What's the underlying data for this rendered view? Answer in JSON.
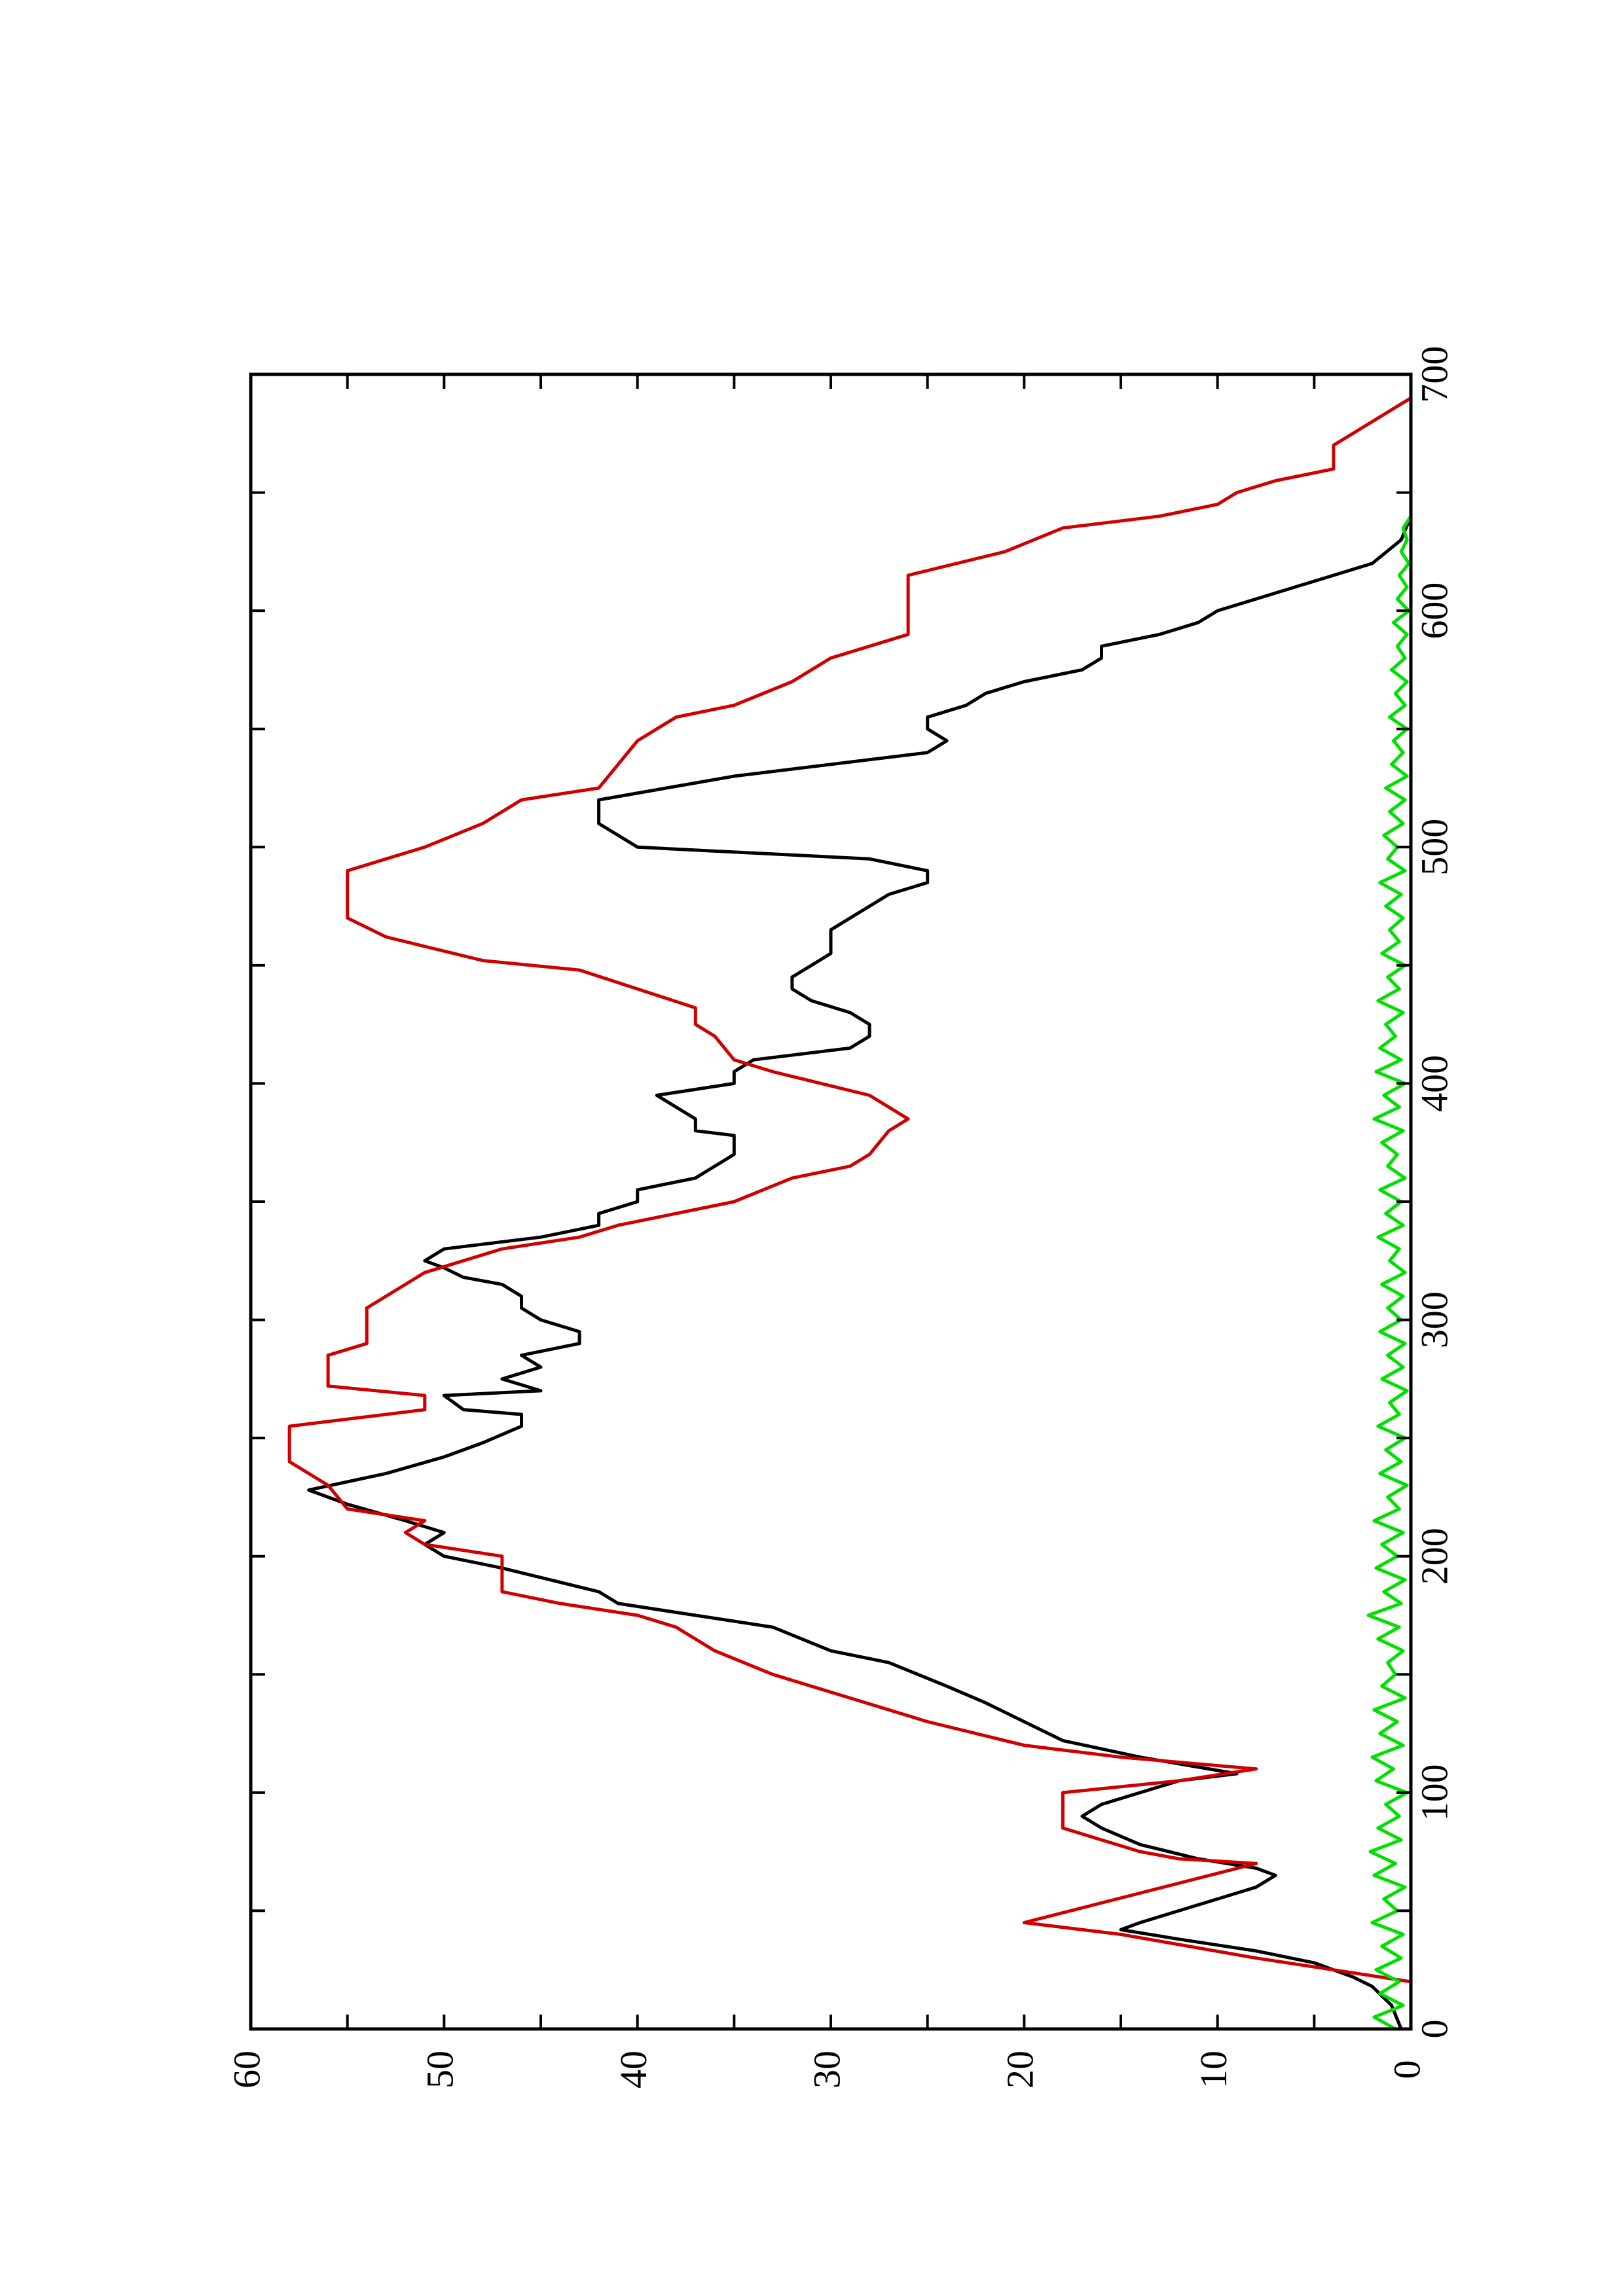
{
  "chart_data": {
    "type": "line",
    "orientation": "rotated-90-ccw",
    "title": "",
    "xlabel": "",
    "ylabel": "",
    "xlim": [
      0,
      700
    ],
    "ylim": [
      0,
      60
    ],
    "x_ticks": [
      0,
      100,
      200,
      300,
      400,
      500,
      600,
      700
    ],
    "x_tick_labels": [
      "0",
      "100",
      "200",
      "300",
      "400",
      "500",
      "600",
      "700"
    ],
    "y_ticks": [
      0,
      10,
      20,
      30,
      40,
      50,
      60
    ],
    "y_tick_labels": [
      "0",
      "10",
      "20",
      "30",
      "40",
      "50",
      "60"
    ],
    "grid": false,
    "legend": "none",
    "series": [
      {
        "color": "#000000",
        "points": [
          [
            0,
            0.5
          ],
          [
            10,
            1
          ],
          [
            18,
            2
          ],
          [
            22,
            3
          ],
          [
            28,
            5
          ],
          [
            33,
            8
          ],
          [
            38,
            12
          ],
          [
            42,
            15
          ],
          [
            45,
            14
          ],
          [
            50,
            12
          ],
          [
            55,
            10
          ],
          [
            60,
            8
          ],
          [
            65,
            7
          ],
          [
            68,
            8
          ],
          [
            72,
            11
          ],
          [
            78,
            14
          ],
          [
            85,
            16
          ],
          [
            90,
            17
          ],
          [
            95,
            16
          ],
          [
            100,
            14
          ],
          [
            105,
            12
          ],
          [
            108,
            9
          ],
          [
            115,
            14
          ],
          [
            122,
            18
          ],
          [
            130,
            20
          ],
          [
            138,
            22
          ],
          [
            145,
            24
          ],
          [
            155,
            27
          ],
          [
            160,
            30
          ],
          [
            170,
            33
          ],
          [
            175,
            37
          ],
          [
            180,
            41
          ],
          [
            185,
            42
          ],
          [
            195,
            47
          ],
          [
            200,
            50
          ],
          [
            205,
            51
          ],
          [
            210,
            50
          ],
          [
            215,
            52
          ],
          [
            222,
            55
          ],
          [
            228,
            57
          ],
          [
            235,
            53
          ],
          [
            242,
            50
          ],
          [
            248,
            48
          ],
          [
            255,
            46
          ],
          [
            260,
            46
          ],
          [
            262,
            49
          ],
          [
            268,
            50
          ],
          [
            270,
            45
          ],
          [
            275,
            47
          ],
          [
            280,
            45
          ],
          [
            285,
            46
          ],
          [
            290,
            43
          ],
          [
            295,
            43
          ],
          [
            300,
            45
          ],
          [
            305,
            46
          ],
          [
            310,
            46
          ],
          [
            315,
            47
          ],
          [
            318,
            49
          ],
          [
            322,
            50
          ],
          [
            325,
            51
          ],
          [
            330,
            50
          ],
          [
            335,
            45
          ],
          [
            340,
            42
          ],
          [
            345,
            42
          ],
          [
            350,
            40
          ],
          [
            355,
            40
          ],
          [
            360,
            37
          ],
          [
            365,
            36
          ],
          [
            370,
            35
          ],
          [
            378,
            35
          ],
          [
            380,
            37
          ],
          [
            385,
            37
          ],
          [
            390,
            38
          ],
          [
            395,
            39
          ],
          [
            400,
            35
          ],
          [
            405,
            35
          ],
          [
            410,
            34
          ],
          [
            415,
            29
          ],
          [
            420,
            28
          ],
          [
            425,
            28
          ],
          [
            430,
            29
          ],
          [
            435,
            31
          ],
          [
            440,
            32
          ],
          [
            445,
            32
          ],
          [
            450,
            31
          ],
          [
            455,
            30
          ],
          [
            460,
            30
          ],
          [
            465,
            30
          ],
          [
            470,
            29
          ],
          [
            475,
            28
          ],
          [
            480,
            27
          ],
          [
            485,
            25
          ],
          [
            490,
            25
          ],
          [
            495,
            28
          ],
          [
            500,
            40
          ],
          [
            510,
            42
          ],
          [
            520,
            42
          ],
          [
            530,
            35
          ],
          [
            540,
            25
          ],
          [
            545,
            24
          ],
          [
            550,
            25
          ],
          [
            555,
            25
          ],
          [
            560,
            23
          ],
          [
            565,
            22
          ],
          [
            570,
            20
          ],
          [
            575,
            17
          ],
          [
            580,
            16
          ],
          [
            585,
            16
          ],
          [
            590,
            13
          ],
          [
            595,
            11
          ],
          [
            600,
            10
          ],
          [
            605,
            8
          ],
          [
            610,
            6
          ],
          [
            615,
            4
          ],
          [
            620,
            2
          ],
          [
            630,
            0.5
          ],
          [
            640,
            0
          ]
        ]
      },
      {
        "color": "#d00000",
        "points": [
          [
            0,
            0
          ],
          [
            20,
            0
          ],
          [
            25,
            4
          ],
          [
            30,
            8
          ],
          [
            40,
            15
          ],
          [
            45,
            20
          ],
          [
            70,
            8
          ],
          [
            72,
            12
          ],
          [
            75,
            14
          ],
          [
            80,
            16
          ],
          [
            85,
            18
          ],
          [
            100,
            18
          ],
          [
            105,
            12
          ],
          [
            110,
            8
          ],
          [
            115,
            15
          ],
          [
            120,
            20
          ],
          [
            130,
            25
          ],
          [
            140,
            29
          ],
          [
            150,
            33
          ],
          [
            160,
            36
          ],
          [
            170,
            38
          ],
          [
            175,
            40
          ],
          [
            180,
            44
          ],
          [
            185,
            47
          ],
          [
            200,
            47
          ],
          [
            205,
            51
          ],
          [
            210,
            52
          ],
          [
            215,
            51
          ],
          [
            220,
            55
          ],
          [
            230,
            56
          ],
          [
            240,
            58
          ],
          [
            255,
            58
          ],
          [
            262,
            51
          ],
          [
            268,
            51
          ],
          [
            272,
            56
          ],
          [
            285,
            56
          ],
          [
            290,
            54
          ],
          [
            305,
            54
          ],
          [
            320,
            51
          ],
          [
            330,
            47
          ],
          [
            335,
            43
          ],
          [
            340,
            41
          ],
          [
            345,
            38
          ],
          [
            350,
            35
          ],
          [
            360,
            32
          ],
          [
            365,
            29
          ],
          [
            370,
            28
          ],
          [
            380,
            27
          ],
          [
            385,
            26
          ],
          [
            395,
            28
          ],
          [
            405,
            33
          ],
          [
            410,
            35
          ],
          [
            420,
            36
          ],
          [
            425,
            37
          ],
          [
            432,
            37
          ],
          [
            440,
            40
          ],
          [
            448,
            43
          ],
          [
            452,
            48
          ],
          [
            458,
            51
          ],
          [
            462,
            53
          ],
          [
            470,
            55
          ],
          [
            490,
            55
          ],
          [
            495,
            53
          ],
          [
            500,
            51
          ],
          [
            510,
            48
          ],
          [
            520,
            46
          ],
          [
            525,
            42
          ],
          [
            535,
            41
          ],
          [
            545,
            40
          ],
          [
            555,
            38
          ],
          [
            560,
            35
          ],
          [
            570,
            32
          ],
          [
            580,
            30
          ],
          [
            590,
            26
          ],
          [
            600,
            26
          ],
          [
            615,
            26
          ],
          [
            625,
            21
          ],
          [
            635,
            18
          ],
          [
            640,
            13
          ],
          [
            645,
            10
          ],
          [
            650,
            9
          ],
          [
            655,
            7
          ],
          [
            660,
            4
          ],
          [
            670,
            4
          ],
          [
            680,
            2
          ],
          [
            690,
            0
          ],
          [
            700,
            0
          ]
        ]
      },
      {
        "color": "#00e000",
        "points": [
          [
            0,
            0.8
          ],
          [
            5,
            1.9
          ],
          [
            10,
            0.4
          ],
          [
            15,
            1.6
          ],
          [
            20,
            0.6
          ],
          [
            25,
            1.8
          ],
          [
            30,
            0.5
          ],
          [
            35,
            1.5
          ],
          [
            40,
            0.4
          ],
          [
            45,
            2.0
          ],
          [
            50,
            0.7
          ],
          [
            55,
            1.4
          ],
          [
            60,
            0.3
          ],
          [
            65,
            1.9
          ],
          [
            70,
            0.8
          ],
          [
            75,
            2.1
          ],
          [
            80,
            0.5
          ],
          [
            85,
            1.7
          ],
          [
            90,
            0.6
          ],
          [
            95,
            1.3
          ],
          [
            100,
            0.2
          ],
          [
            105,
            1.8
          ],
          [
            110,
            0.9
          ],
          [
            115,
            2.0
          ],
          [
            120,
            0.4
          ],
          [
            125,
            1.6
          ],
          [
            130,
            0.7
          ],
          [
            135,
            1.9
          ],
          [
            140,
            0.3
          ],
          [
            145,
            1.5
          ],
          [
            150,
            0.8
          ],
          [
            155,
            1.2
          ],
          [
            160,
            0.4
          ],
          [
            165,
            1.7
          ],
          [
            170,
            0.6
          ],
          [
            175,
            2.2
          ],
          [
            180,
            0.5
          ],
          [
            185,
            1.4
          ],
          [
            190,
            0.3
          ],
          [
            195,
            1.8
          ],
          [
            200,
            0.7
          ],
          [
            205,
            1.5
          ],
          [
            210,
            0.4
          ],
          [
            215,
            1.9
          ],
          [
            220,
            0.6
          ],
          [
            225,
            1.2
          ],
          [
            230,
            0.2
          ],
          [
            235,
            1.6
          ],
          [
            240,
            0.5
          ],
          [
            245,
            1.3
          ],
          [
            250,
            0.3
          ],
          [
            255,
            1.7
          ],
          [
            260,
            0.6
          ],
          [
            265,
            1.1
          ],
          [
            270,
            0.2
          ],
          [
            275,
            1.5
          ],
          [
            280,
            0.4
          ],
          [
            285,
            1.2
          ],
          [
            290,
            0.3
          ],
          [
            295,
            1.6
          ],
          [
            300,
            0.5
          ],
          [
            305,
            1.2
          ],
          [
            310,
            0.4
          ],
          [
            315,
            1.5
          ],
          [
            320,
            0.3
          ],
          [
            325,
            1.1
          ],
          [
            330,
            0.6
          ],
          [
            335,
            1.7
          ],
          [
            340,
            0.4
          ],
          [
            345,
            1.3
          ],
          [
            350,
            0.5
          ],
          [
            355,
            1.6
          ],
          [
            360,
            0.3
          ],
          [
            365,
            1.2
          ],
          [
            370,
            0.7
          ],
          [
            375,
            1.5
          ],
          [
            380,
            0.4
          ],
          [
            385,
            1.9
          ],
          [
            390,
            0.6
          ],
          [
            395,
            1.4
          ],
          [
            400,
            0.3
          ],
          [
            405,
            1.8
          ],
          [
            410,
            0.5
          ],
          [
            415,
            1.6
          ],
          [
            420,
            0.8
          ],
          [
            425,
            1.3
          ],
          [
            430,
            0.4
          ],
          [
            435,
            1.7
          ],
          [
            440,
            0.6
          ],
          [
            445,
            1.2
          ],
          [
            450,
            0.3
          ],
          [
            455,
            1.5
          ],
          [
            460,
            0.6
          ],
          [
            465,
            1.1
          ],
          [
            470,
            0.4
          ],
          [
            475,
            1.3
          ],
          [
            480,
            0.5
          ],
          [
            485,
            1.6
          ],
          [
            490,
            0.3
          ],
          [
            495,
            1.2
          ],
          [
            500,
            0.7
          ],
          [
            505,
            1.4
          ],
          [
            510,
            0.4
          ],
          [
            515,
            1.1
          ],
          [
            520,
            0.3
          ],
          [
            525,
            1.3
          ],
          [
            530,
            0.2
          ],
          [
            535,
            1.0
          ],
          [
            540,
            0.4
          ],
          [
            545,
            0.9
          ],
          [
            550,
            0.2
          ],
          [
            555,
            1.1
          ],
          [
            560,
            0.3
          ],
          [
            565,
            0.8
          ],
          [
            570,
            0.2
          ],
          [
            575,
            1.0
          ],
          [
            580,
            0.3
          ],
          [
            585,
            0.7
          ],
          [
            590,
            0.2
          ],
          [
            595,
            0.9
          ],
          [
            600,
            0.1
          ],
          [
            605,
            0.7
          ],
          [
            610,
            0.2
          ],
          [
            615,
            0.6
          ],
          [
            620,
            0.1
          ],
          [
            625,
            0.5
          ],
          [
            630,
            0.2
          ],
          [
            635,
            0.4
          ],
          [
            640,
            0
          ]
        ]
      }
    ]
  }
}
